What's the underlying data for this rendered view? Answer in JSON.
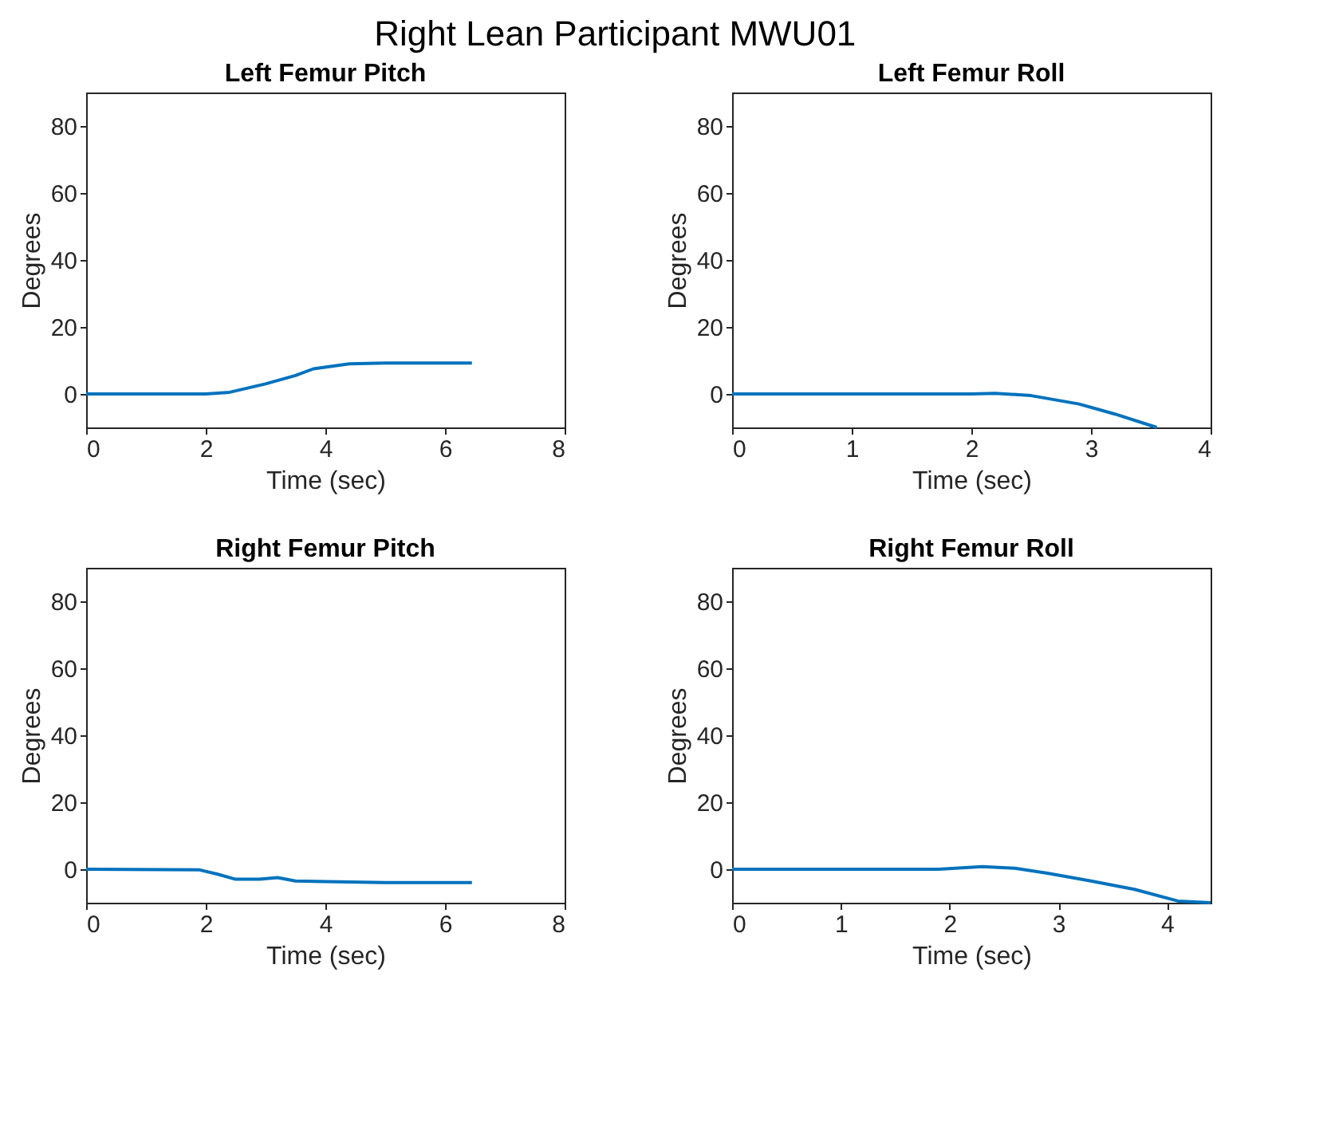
{
  "chart_data": [
    {
      "type": "line",
      "title": "Left Femur Pitch",
      "xlabel": "Time (sec)",
      "ylabel": "Degrees",
      "xlim": [
        0,
        8
      ],
      "xticks": [
        0,
        2,
        4,
        6,
        8
      ],
      "ylim": [
        -10,
        90
      ],
      "yticks": [
        0,
        20,
        40,
        60,
        80
      ],
      "grid": false,
      "series": [
        {
          "color": "#0072bd",
          "x": [
            0,
            1,
            2,
            2.4,
            3,
            3.5,
            3.8,
            4.4,
            5,
            6.45
          ],
          "values": [
            0,
            0,
            0,
            0.5,
            3,
            5.5,
            7.5,
            9,
            9.2,
            9.2
          ]
        }
      ],
      "annotations": [
        "Right Lean Participant MWU01"
      ]
    },
    {
      "type": "line",
      "title": "Left Femur Roll",
      "xlabel": "Time (sec)",
      "ylabel": "Degrees",
      "xlim": [
        0,
        4
      ],
      "xticks": [
        0,
        1,
        2,
        3,
        4
      ],
      "ylim": [
        -10,
        90
      ],
      "yticks": [
        0,
        20,
        40,
        60,
        80
      ],
      "grid": false,
      "series": [
        {
          "color": "#0072bd",
          "x": [
            0,
            1,
            2,
            2.2,
            2.5,
            2.9,
            3.2,
            3.55
          ],
          "values": [
            0,
            0,
            0,
            0.2,
            -0.5,
            -3,
            -6,
            -10
          ]
        }
      ]
    },
    {
      "type": "line",
      "title": "Right Femur Pitch",
      "xlabel": "Time (sec)",
      "ylabel": "Degrees",
      "xlim": [
        0,
        8
      ],
      "xticks": [
        0,
        2,
        4,
        6,
        8
      ],
      "ylim": [
        -10,
        90
      ],
      "yticks": [
        0,
        20,
        40,
        60,
        80
      ],
      "grid": false,
      "series": [
        {
          "color": "#0072bd",
          "x": [
            0,
            1.9,
            2.2,
            2.5,
            2.9,
            3.2,
            3.5,
            4,
            5,
            6.45
          ],
          "values": [
            0,
            -0.2,
            -1.5,
            -3,
            -3,
            -2.5,
            -3.5,
            -3.7,
            -4,
            -4
          ]
        }
      ]
    },
    {
      "type": "line",
      "title": "Right Femur Roll",
      "xlabel": "Time (sec)",
      "ylabel": "Degrees",
      "xlim": [
        0,
        4.4
      ],
      "xticks": [
        0,
        1,
        2,
        3,
        4
      ],
      "ylim": [
        -10,
        90
      ],
      "yticks": [
        0,
        20,
        40,
        60,
        80
      ],
      "grid": false,
      "series": [
        {
          "color": "#0072bd",
          "x": [
            0,
            1,
            1.9,
            2.3,
            2.6,
            2.9,
            3.3,
            3.7,
            4.1,
            4.4
          ],
          "values": [
            0,
            0,
            0,
            0.8,
            0.3,
            -1.2,
            -3.5,
            -6,
            -9.5,
            -10
          ]
        }
      ]
    }
  ]
}
